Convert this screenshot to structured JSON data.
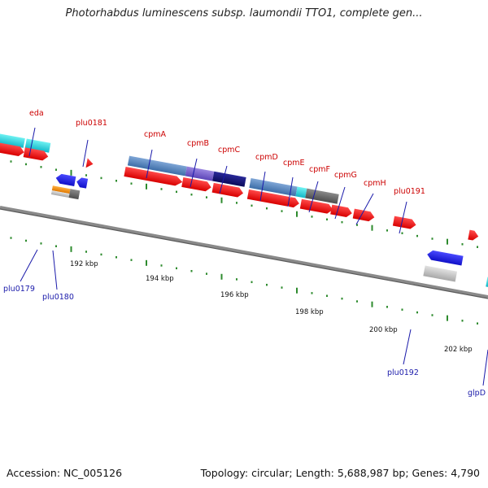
{
  "title": "Photorhabdus luminescens subsp. laumondii TTO1, complete gen...",
  "accession": "Accession: NC_005126",
  "summary": "Topology: circular; Length: 5,688,987 bp; Genes: 4,790",
  "colors": {
    "backbone": "#8a8a8a",
    "tick": "#2e8b2e",
    "forward_gene": "#ee1111",
    "label_red": "#cc0000",
    "label_blue": "#1a1aaa"
  },
  "ruler_labels": [
    "192 kbp",
    "194 kbp",
    "196 kbp",
    "198 kbp",
    "200 kbp",
    "202 kbp"
  ],
  "gene_labels_top": [
    "eda",
    "plu0181",
    "cpmA",
    "cpmB",
    "cpmC",
    "cpmD",
    "cpmE",
    "cpmF",
    "cpmG",
    "cpmH",
    "plu0191"
  ],
  "gene_labels_bottom": [
    "plu0179",
    "plu0180",
    "plu0192",
    "glpD"
  ]
}
